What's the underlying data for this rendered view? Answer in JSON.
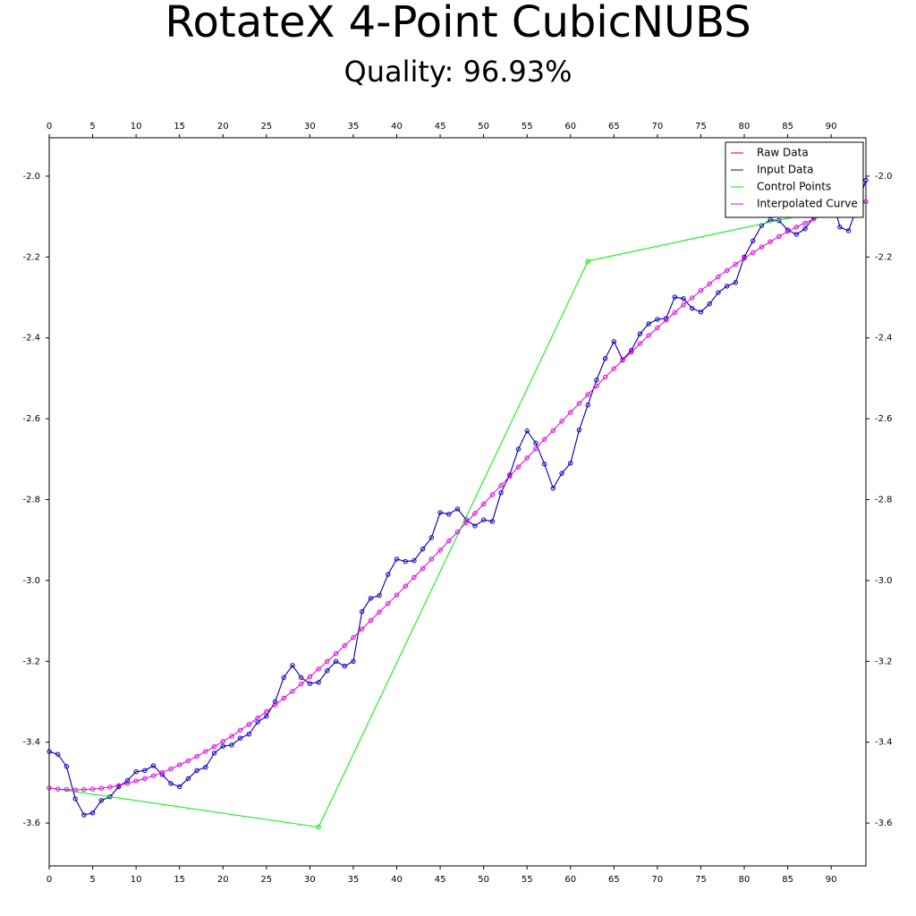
{
  "chart_data": {
    "type": "line",
    "title": "RotateX 4-Point CubicNUBS",
    "subtitle": "Quality: 96.93%",
    "legend": "upper right",
    "xlim": [
      0,
      94
    ],
    "ylim": [
      -3.706,
      -1.905
    ],
    "xticks": [
      0,
      5,
      10,
      15,
      20,
      25,
      30,
      35,
      40,
      45,
      50,
      55,
      60,
      65,
      70,
      75,
      80,
      85,
      90
    ],
    "yticks": [
      {
        "value": -2.0,
        "label": "-2.0"
      },
      -2.2,
      -2.4,
      -2.6,
      -2.8,
      {
        "value": -3.0,
        "label": "-3.0"
      },
      -3.2,
      -3.4,
      -3.6
    ],
    "x": [
      0,
      1,
      2,
      3,
      4,
      5,
      6,
      7,
      8,
      9,
      10,
      11,
      12,
      13,
      14,
      15,
      16,
      17,
      18,
      19,
      20,
      21,
      22,
      23,
      24,
      25,
      26,
      27,
      28,
      29,
      30,
      31,
      32,
      33,
      34,
      35,
      36,
      37,
      38,
      39,
      40,
      41,
      42,
      43,
      44,
      45,
      46,
      47,
      48,
      49,
      50,
      51,
      52,
      53,
      54,
      55,
      56,
      57,
      58,
      59,
      60,
      61,
      62,
      63,
      64,
      65,
      66,
      67,
      68,
      69,
      70,
      71,
      72,
      73,
      74,
      75,
      76,
      77,
      78,
      79,
      80,
      81,
      82,
      83,
      84,
      85,
      86,
      87,
      88,
      89,
      90,
      91,
      92,
      93,
      94
    ],
    "series": [
      {
        "name": "Raw Data",
        "color": "#cc0000",
        "markers": false,
        "values": [
          -3.423,
          -3.43,
          -3.46,
          -3.54,
          -3.58,
          -3.575,
          -3.544,
          -3.535,
          -3.51,
          -3.495,
          -3.473,
          -3.47,
          -3.458,
          -3.48,
          -3.502,
          -3.51,
          -3.49,
          -3.47,
          -3.462,
          -3.427,
          -3.41,
          -3.407,
          -3.39,
          -3.38,
          -3.35,
          -3.336,
          -3.3,
          -3.24,
          -3.21,
          -3.24,
          -3.255,
          -3.252,
          -3.223,
          -3.2,
          -3.212,
          -3.2,
          -3.077,
          -3.044,
          -3.037,
          -2.985,
          -2.947,
          -2.953,
          -2.951,
          -2.922,
          -2.894,
          -2.832,
          -2.836,
          -2.823,
          -2.85,
          -2.865,
          -2.85,
          -2.854,
          -2.783,
          -2.739,
          -2.675,
          -2.63,
          -2.66,
          -2.712,
          -2.772,
          -2.735,
          -2.71,
          -2.628,
          -2.566,
          -2.504,
          -2.451,
          -2.409,
          -2.454,
          -2.431,
          -2.39,
          -2.365,
          -2.354,
          -2.352,
          -2.299,
          -2.303,
          -2.327,
          -2.336,
          -2.316,
          -2.288,
          -2.272,
          -2.263,
          -2.2,
          -2.16,
          -2.122,
          -2.108,
          -2.11,
          -2.133,
          -2.144,
          -2.13,
          -2.102,
          -2.046,
          -2.042,
          -2.126,
          -2.135,
          -2.075,
          -2.01
        ]
      },
      {
        "name": "Input Data",
        "color": "#0000cc",
        "markers": true,
        "values": [
          -3.423,
          -3.43,
          -3.46,
          -3.54,
          -3.58,
          -3.575,
          -3.544,
          -3.535,
          -3.51,
          -3.495,
          -3.473,
          -3.47,
          -3.458,
          -3.48,
          -3.502,
          -3.51,
          -3.49,
          -3.47,
          -3.462,
          -3.427,
          -3.41,
          -3.407,
          -3.39,
          -3.38,
          -3.35,
          -3.336,
          -3.3,
          -3.24,
          -3.21,
          -3.24,
          -3.255,
          -3.252,
          -3.223,
          -3.2,
          -3.212,
          -3.2,
          -3.077,
          -3.044,
          -3.037,
          -2.985,
          -2.947,
          -2.953,
          -2.951,
          -2.922,
          -2.894,
          -2.832,
          -2.836,
          -2.823,
          -2.85,
          -2.865,
          -2.85,
          -2.854,
          -2.783,
          -2.739,
          -2.675,
          -2.63,
          -2.66,
          -2.712,
          -2.772,
          -2.735,
          -2.71,
          -2.628,
          -2.566,
          -2.504,
          -2.451,
          -2.409,
          -2.454,
          -2.431,
          -2.39,
          -2.365,
          -2.354,
          -2.352,
          -2.299,
          -2.303,
          -2.327,
          -2.336,
          -2.316,
          -2.288,
          -2.272,
          -2.263,
          -2.2,
          -2.16,
          -2.122,
          -2.108,
          -2.11,
          -2.133,
          -2.144,
          -2.13,
          -2.102,
          -2.046,
          -2.042,
          -2.126,
          -2.135,
          -2.075,
          -2.01
        ]
      },
      {
        "name": "Control Points",
        "color": "#00ee00",
        "markers": true,
        "x": [
          0,
          31,
          62,
          94
        ],
        "values": [
          -3.513,
          -3.61,
          -2.21,
          -2.063
        ]
      },
      {
        "name": "Interpolated Curve",
        "color": "#dd00dd",
        "markers": true,
        "values": [
          -3.513,
          -3.516,
          -3.517,
          -3.518,
          -3.517,
          -3.516,
          -3.514,
          -3.511,
          -3.507,
          -3.502,
          -3.496,
          -3.49,
          -3.483,
          -3.475,
          -3.466,
          -3.456,
          -3.446,
          -3.435,
          -3.423,
          -3.411,
          -3.398,
          -3.385,
          -3.37,
          -3.356,
          -3.34,
          -3.324,
          -3.308,
          -3.291,
          -3.274,
          -3.256,
          -3.238,
          -3.219,
          -3.2,
          -3.181,
          -3.161,
          -3.141,
          -3.12,
          -3.099,
          -3.078,
          -3.057,
          -3.036,
          -3.014,
          -2.992,
          -2.97,
          -2.947,
          -2.925,
          -2.902,
          -2.88,
          -2.857,
          -2.834,
          -2.811,
          -2.788,
          -2.765,
          -2.742,
          -2.719,
          -2.697,
          -2.674,
          -2.651,
          -2.629,
          -2.606,
          -2.584,
          -2.562,
          -2.54,
          -2.519,
          -2.497,
          -2.476,
          -2.455,
          -2.435,
          -2.414,
          -2.394,
          -2.375,
          -2.356,
          -2.337,
          -2.318,
          -2.301,
          -2.283,
          -2.266,
          -2.249,
          -2.233,
          -2.218,
          -2.203,
          -2.189,
          -2.175,
          -2.162,
          -2.149,
          -2.137,
          -2.126,
          -2.116,
          -2.106,
          -2.097,
          -2.088,
          -2.081,
          -2.074,
          -2.068,
          -2.063
        ]
      }
    ]
  }
}
